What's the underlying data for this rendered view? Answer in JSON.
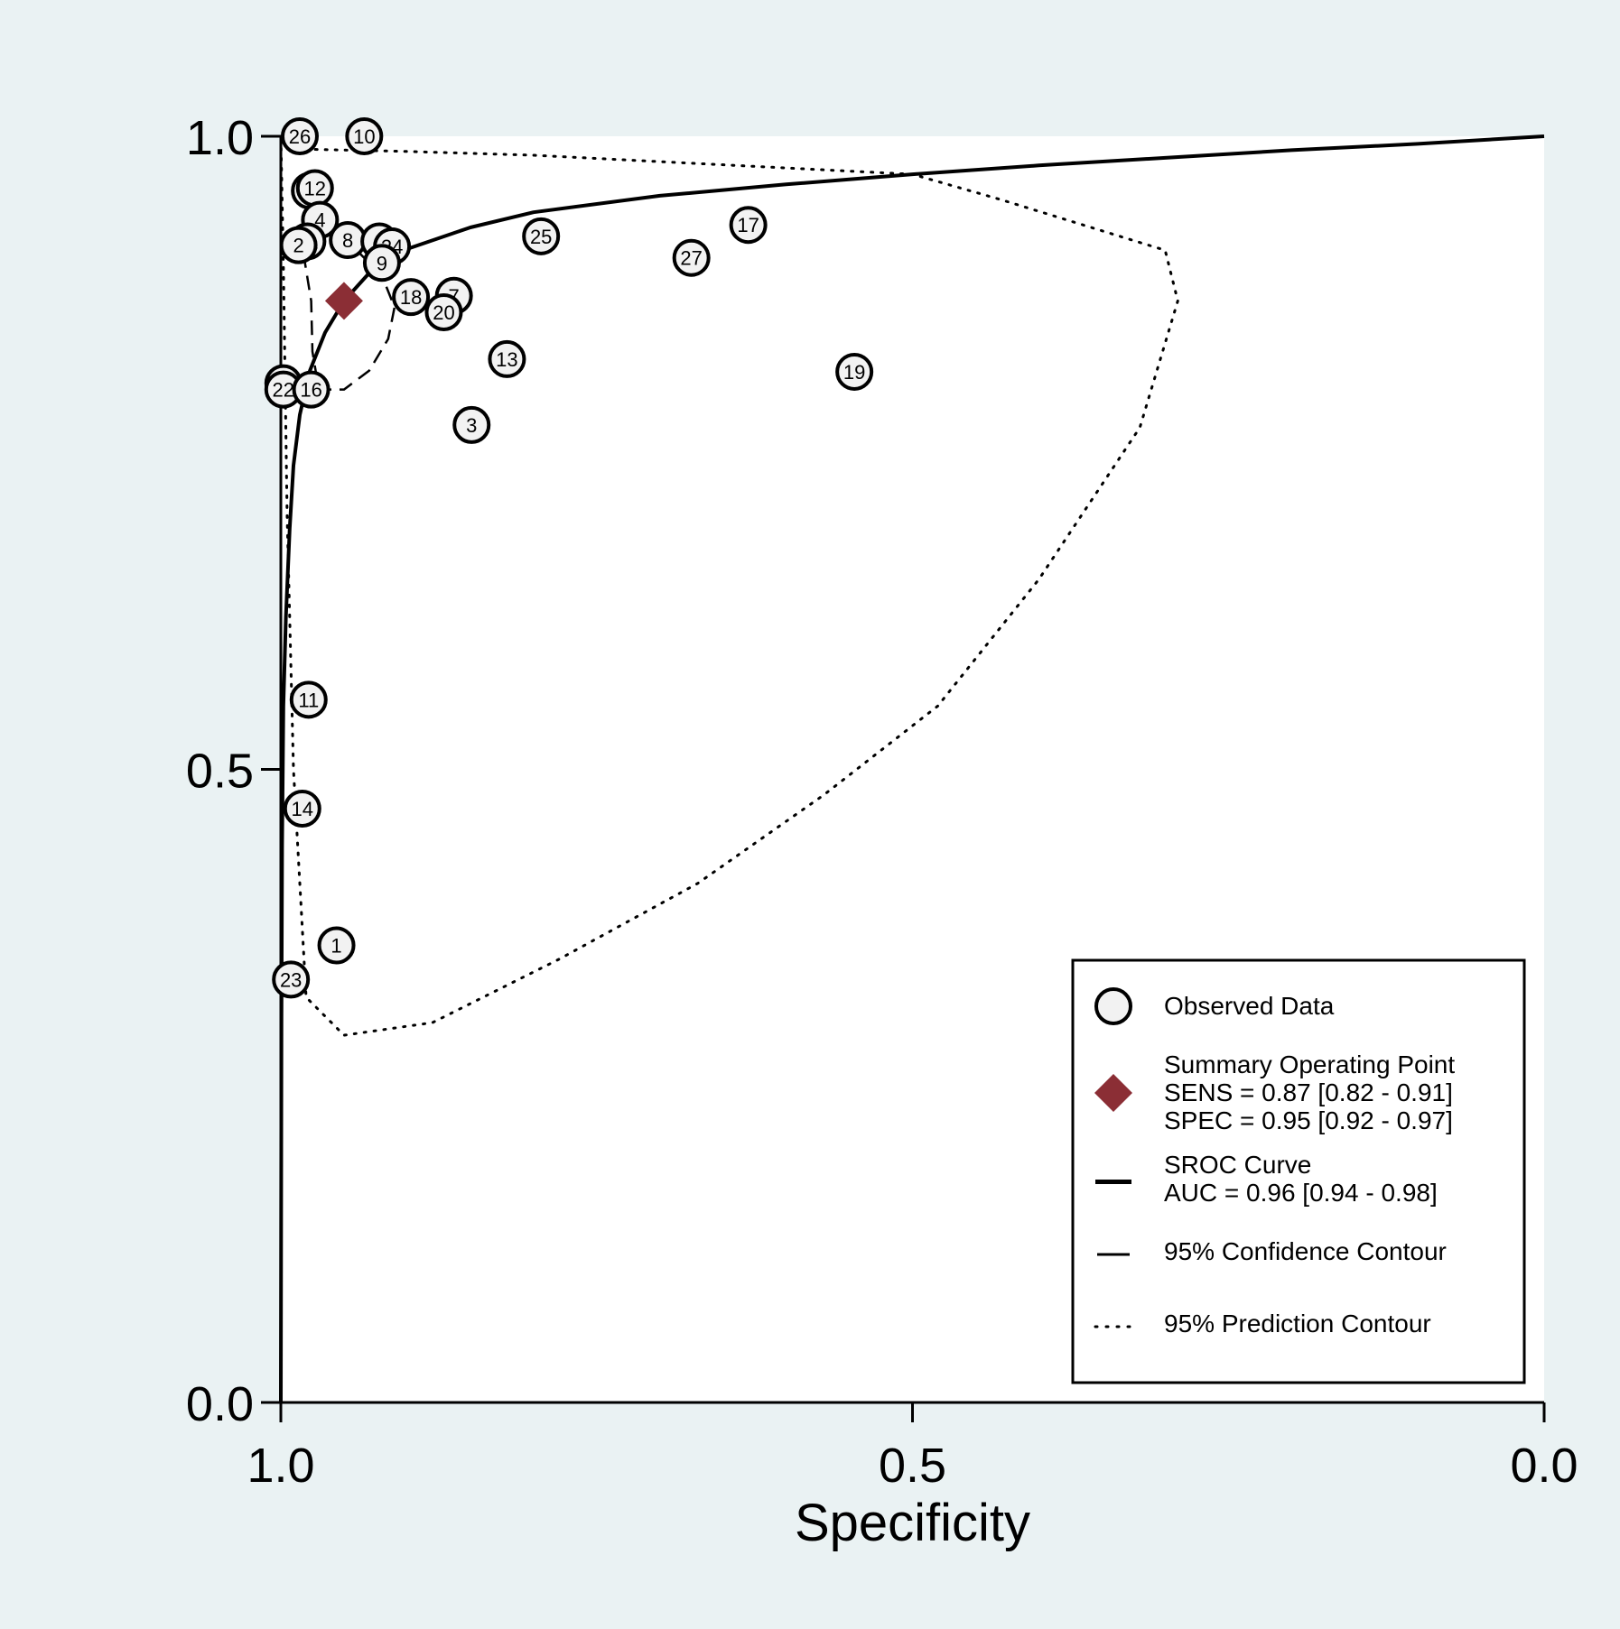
{
  "chart_data": {
    "type": "scatter",
    "title": "",
    "xlabel": "Specificity",
    "ylabel": "",
    "xlim": [
      1.0,
      0.0
    ],
    "ylim": [
      0.0,
      1.0
    ],
    "x_reversed": true,
    "x_ticks": [
      "1.0",
      "0.5",
      "0.0"
    ],
    "y_ticks": [
      "1.0",
      "0.5",
      "0.0"
    ],
    "grid": false,
    "legend_position": "bottom-right",
    "colors": {
      "background": "#eaf2f3",
      "plot_area": "#ffffff",
      "marker_fill": "#f2f2f2",
      "summary_point": "#8b2e35",
      "lines": "#000000"
    },
    "observed_data": [
      {
        "label": "26",
        "spec": 0.985,
        "sens": 1.0
      },
      {
        "label": "10",
        "spec": 0.934,
        "sens": 1.0
      },
      {
        "label": "15",
        "spec": 0.977,
        "sens": 0.957
      },
      {
        "label": "12",
        "spec": 0.973,
        "sens": 0.959
      },
      {
        "label": "4",
        "spec": 0.969,
        "sens": 0.934
      },
      {
        "label": "21",
        "spec": 0.979,
        "sens": 0.917
      },
      {
        "label": "2",
        "spec": 0.986,
        "sens": 0.914
      },
      {
        "label": "8",
        "spec": 0.947,
        "sens": 0.918
      },
      {
        "label": "6",
        "spec": 0.922,
        "sens": 0.917
      },
      {
        "label": "24",
        "spec": 0.912,
        "sens": 0.913
      },
      {
        "label": "9",
        "spec": 0.92,
        "sens": 0.9
      },
      {
        "label": "25",
        "spec": 0.794,
        "sens": 0.921
      },
      {
        "label": "27",
        "spec": 0.675,
        "sens": 0.904
      },
      {
        "label": "17",
        "spec": 0.63,
        "sens": 0.93
      },
      {
        "label": "18",
        "spec": 0.897,
        "sens": 0.873
      },
      {
        "label": "7",
        "spec": 0.863,
        "sens": 0.874
      },
      {
        "label": "20",
        "spec": 0.871,
        "sens": 0.861
      },
      {
        "label": "13",
        "spec": 0.821,
        "sens": 0.824
      },
      {
        "label": "19",
        "spec": 0.546,
        "sens": 0.814
      },
      {
        "label": "5",
        "spec": 0.998,
        "sens": 0.805
      },
      {
        "label": "22",
        "spec": 0.998,
        "sens": 0.8
      },
      {
        "label": "16",
        "spec": 0.976,
        "sens": 0.8
      },
      {
        "label": "3",
        "spec": 0.849,
        "sens": 0.772
      },
      {
        "label": "11",
        "spec": 0.978,
        "sens": 0.555
      },
      {
        "label": "14",
        "spec": 0.983,
        "sens": 0.469
      },
      {
        "label": "1",
        "spec": 0.956,
        "sens": 0.361
      },
      {
        "label": "23",
        "spec": 0.992,
        "sens": 0.334
      }
    ],
    "summary_point": {
      "spec": 0.95,
      "sens": 0.87
    },
    "sroc_curve": {
      "points": [
        [
          1.0,
          0.0
        ],
        [
          0.9995,
          0.3
        ],
        [
          0.999,
          0.44
        ],
        [
          0.998,
          0.55
        ],
        [
          0.996,
          0.62
        ],
        [
          0.993,
          0.69
        ],
        [
          0.99,
          0.74
        ],
        [
          0.985,
          0.78
        ],
        [
          0.977,
          0.815
        ],
        [
          0.965,
          0.845
        ],
        [
          0.95,
          0.87
        ],
        [
          0.93,
          0.892
        ],
        [
          0.9,
          0.911
        ],
        [
          0.85,
          0.928
        ],
        [
          0.8,
          0.94
        ],
        [
          0.7,
          0.953
        ],
        [
          0.6,
          0.962
        ],
        [
          0.5,
          0.97
        ],
        [
          0.4,
          0.977
        ],
        [
          0.3,
          0.983
        ],
        [
          0.2,
          0.989
        ],
        [
          0.1,
          0.994
        ],
        [
          0.0,
          1.0
        ]
      ]
    },
    "confidence_contour": {
      "points": [
        [
          0.985,
          0.925
        ],
        [
          0.976,
          0.87
        ],
        [
          0.975,
          0.83
        ],
        [
          0.97,
          0.8
        ],
        [
          0.95,
          0.8
        ],
        [
          0.93,
          0.815
        ],
        [
          0.915,
          0.84
        ],
        [
          0.91,
          0.865
        ],
        [
          0.92,
          0.89
        ],
        [
          0.94,
          0.91
        ],
        [
          0.965,
          0.925
        ],
        [
          0.985,
          0.925
        ]
      ]
    },
    "prediction_contour": {
      "points": [
        [
          1.0,
          1.0
        ],
        [
          0.99,
          0.99
        ],
        [
          0.9,
          0.988
        ],
        [
          0.8,
          0.985
        ],
        [
          0.7,
          0.98
        ],
        [
          0.6,
          0.975
        ],
        [
          0.5,
          0.97
        ],
        [
          0.43,
          0.95
        ],
        [
          0.3,
          0.91
        ],
        [
          0.29,
          0.87
        ],
        [
          0.32,
          0.77
        ],
        [
          0.4,
          0.65
        ],
        [
          0.48,
          0.55
        ],
        [
          0.57,
          0.48
        ],
        [
          0.67,
          0.41
        ],
        [
          0.78,
          0.35
        ],
        [
          0.88,
          0.3
        ],
        [
          0.95,
          0.29
        ],
        [
          0.98,
          0.32
        ],
        [
          0.99,
          0.5
        ],
        [
          0.995,
          0.7
        ],
        [
          0.998,
          0.9
        ],
        [
          1.0,
          1.0
        ]
      ]
    },
    "legend": [
      {
        "key": "observed",
        "lines": [
          "Observed Data"
        ]
      },
      {
        "key": "summary",
        "lines": [
          "Summary Operating Point",
          "SENS = 0.87 [0.82 - 0.91]",
          "SPEC = 0.95 [0.92 - 0.97]"
        ]
      },
      {
        "key": "sroc",
        "lines": [
          "SROC Curve",
          "AUC = 0.96 [0.94 - 0.98]"
        ]
      },
      {
        "key": "confidence",
        "lines": [
          "95% Confidence Contour"
        ]
      },
      {
        "key": "prediction",
        "lines": [
          "95% Prediction Contour"
        ]
      }
    ]
  }
}
